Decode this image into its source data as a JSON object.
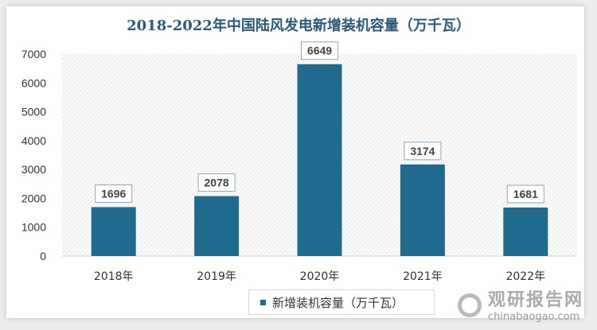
{
  "chart_data": {
    "type": "bar",
    "title": "2018-2022年中国陆风发电新增装机容量（万千瓦）",
    "categories": [
      "2018年",
      "2019年",
      "2020年",
      "2021年",
      "2022年"
    ],
    "series": [
      {
        "name": "新增装机容量（万千瓦）",
        "values": [
          1696,
          2078,
          6649,
          3174,
          1681
        ]
      }
    ],
    "ylim": [
      0,
      7000
    ],
    "yticks": [
      "0",
      "1000",
      "2000",
      "3000",
      "4000",
      "5000",
      "6000",
      "7000"
    ],
    "xlabel": "",
    "ylabel": "",
    "legend_position": "bottom",
    "grid": false,
    "bar_color": "#1f6b8e"
  },
  "watermark": {
    "cn": "观研报告网",
    "en": "chinabaogao.com"
  }
}
